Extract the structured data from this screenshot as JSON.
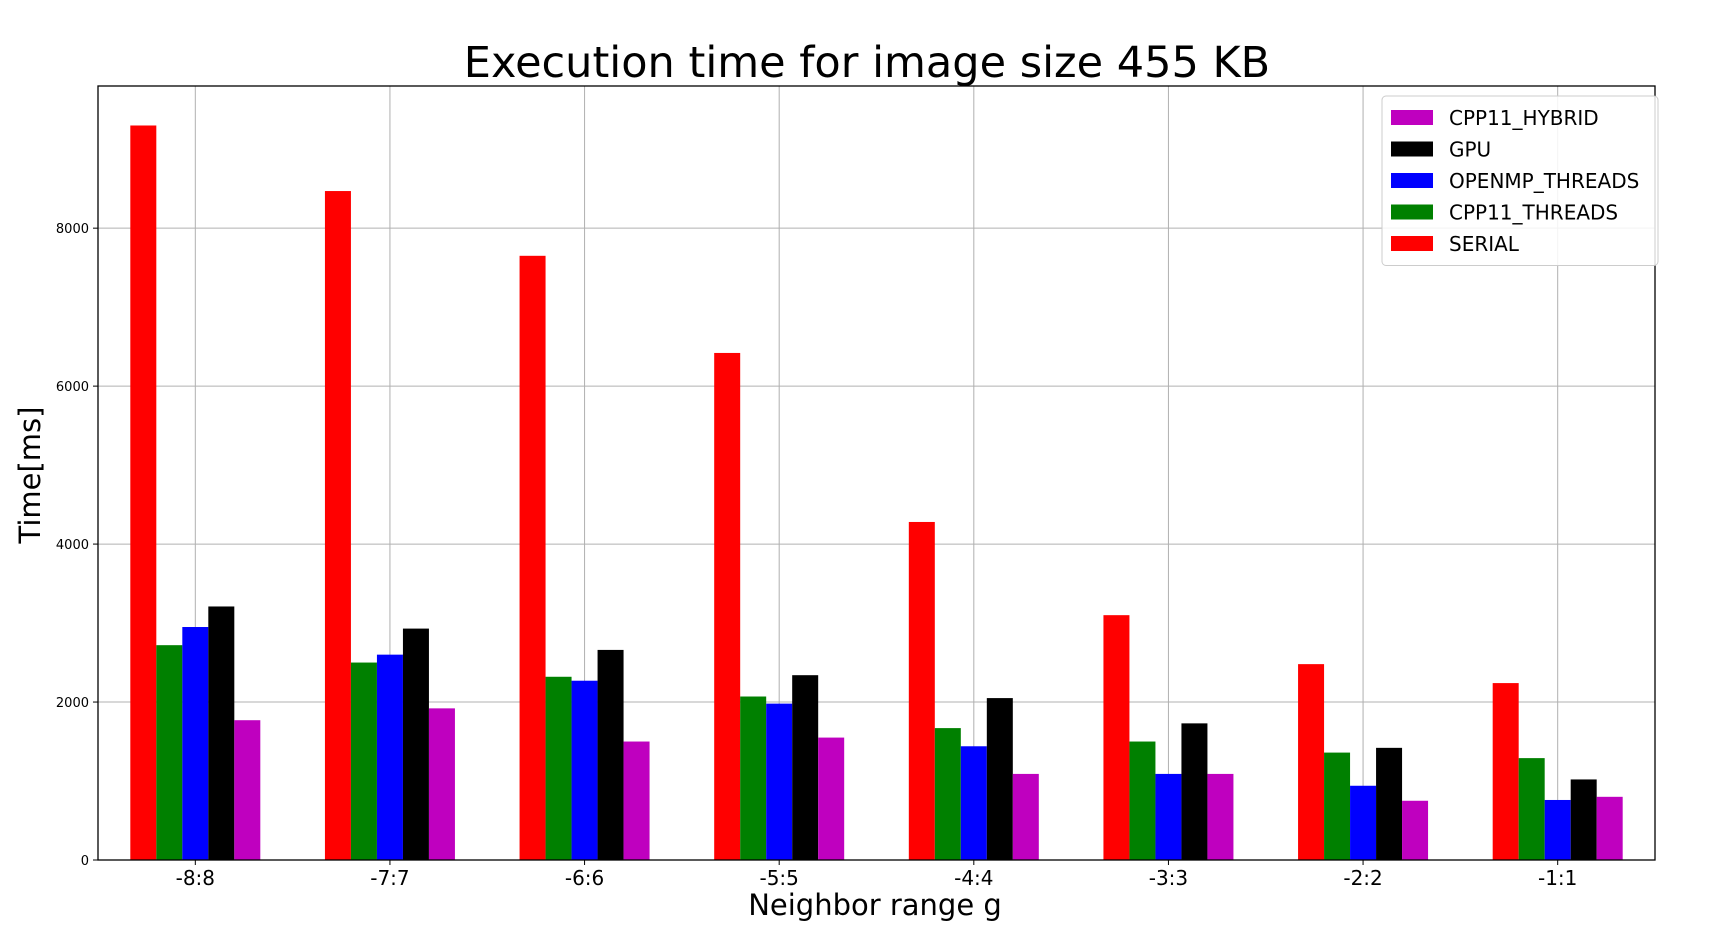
{
  "chart_data": {
    "type": "bar",
    "title": "Execution time for image size 455 KB",
    "xlabel": "Neighbor range g",
    "ylabel": "Time[ms]",
    "categories": [
      "-8:8",
      "-7:7",
      "-6:6",
      "-5:5",
      "-4:4",
      "-3:3",
      "-2:2",
      "-1:1"
    ],
    "ylim": [
      0,
      9800
    ],
    "yticks": [
      0,
      2000,
      4000,
      6000,
      8000
    ],
    "grid": true,
    "legend_position": "top-right",
    "series": [
      {
        "name": "SERIAL",
        "color": "#ff0000",
        "values": [
          9300,
          8470,
          7650,
          6420,
          4280,
          3100,
          2480,
          2240
        ]
      },
      {
        "name": "CPP11_THREADS",
        "color": "#008000",
        "values": [
          2720,
          2500,
          2320,
          2070,
          1670,
          1500,
          1360,
          1290
        ]
      },
      {
        "name": "OPENMP_THREADS",
        "color": "#0000ff",
        "values": [
          2950,
          2600,
          2270,
          1980,
          1440,
          1090,
          940,
          760
        ]
      },
      {
        "name": "GPU",
        "color": "#000000",
        "values": [
          3210,
          2930,
          2660,
          2340,
          2050,
          1730,
          1420,
          1020
        ]
      },
      {
        "name": "CPP11_HYBRID",
        "color": "#bf00bf",
        "values": [
          1770,
          1920,
          1500,
          1550,
          1090,
          1090,
          750,
          800
        ]
      }
    ],
    "legend_order": [
      "CPP11_HYBRID",
      "GPU",
      "OPENMP_THREADS",
      "CPP11_THREADS",
      "SERIAL"
    ]
  }
}
